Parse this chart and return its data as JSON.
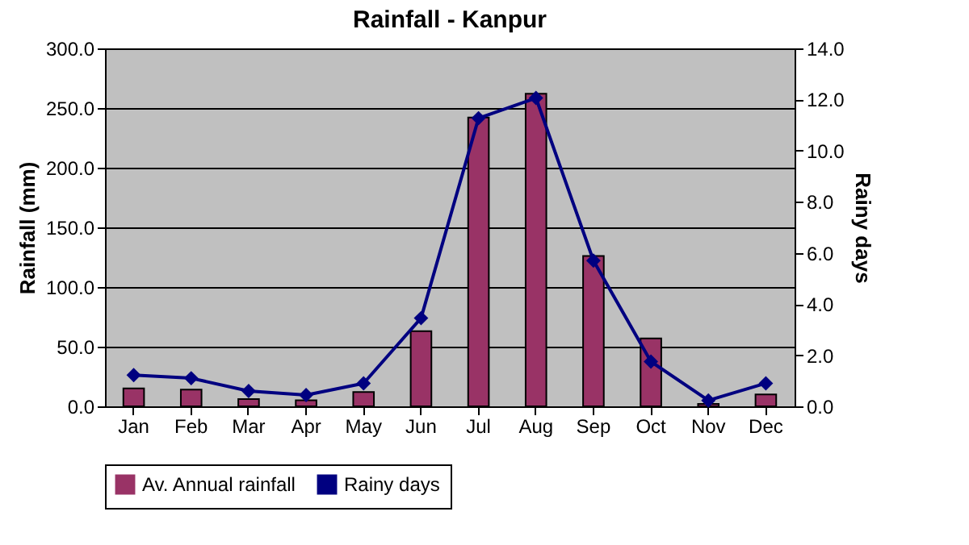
{
  "chart_data": {
    "type": "bar",
    "title": "Rainfall - Kanpur",
    "ylabel": "Rainfall (mm)",
    "y2label": "Rainy days",
    "categories": [
      "Jan",
      "Feb",
      "Mar",
      "Apr",
      "May",
      "Jun",
      "Jul",
      "Aug",
      "Sep",
      "Oct",
      "Nov",
      "Dec"
    ],
    "series": [
      {
        "name": "Av. Annual rainfall",
        "color": "#993366",
        "values": [
          15,
          14,
          6,
          5,
          12,
          63,
          242,
          262,
          126,
          57,
          2,
          10
        ]
      },
      {
        "name": "Rainy days",
        "type": "line",
        "axis": "y2",
        "color": "#000080",
        "marker": "diamond",
        "values": [
          1.22,
          1.1,
          0.6,
          0.44,
          0.9,
          3.45,
          11.27,
          12.06,
          5.7,
          1.75,
          0.23,
          0.9
        ]
      }
    ],
    "ylim": [
      0,
      300
    ],
    "yticks": [
      {
        "value": 0,
        "label": "0.0"
      },
      {
        "value": 50,
        "label": "50.0"
      },
      {
        "value": 100,
        "label": "100.0"
      },
      {
        "value": 150,
        "label": "150.0"
      },
      {
        "value": 200,
        "label": "200.0"
      },
      {
        "value": 250,
        "label": "250.0"
      },
      {
        "value": 300,
        "label": "300.0"
      }
    ],
    "y2lim": [
      0,
      14
    ],
    "y2ticks": [
      {
        "value": 0,
        "label": "0.0"
      },
      {
        "value": 2,
        "label": "2.0"
      },
      {
        "value": 4,
        "label": "4.0"
      },
      {
        "value": 6,
        "label": "6.0"
      },
      {
        "value": 8,
        "label": "8.0"
      },
      {
        "value": 10,
        "label": "10.0"
      },
      {
        "value": 12,
        "label": "12.0"
      },
      {
        "value": 14,
        "label": "14.0"
      }
    ],
    "grid": "y",
    "legend": "bottom"
  }
}
